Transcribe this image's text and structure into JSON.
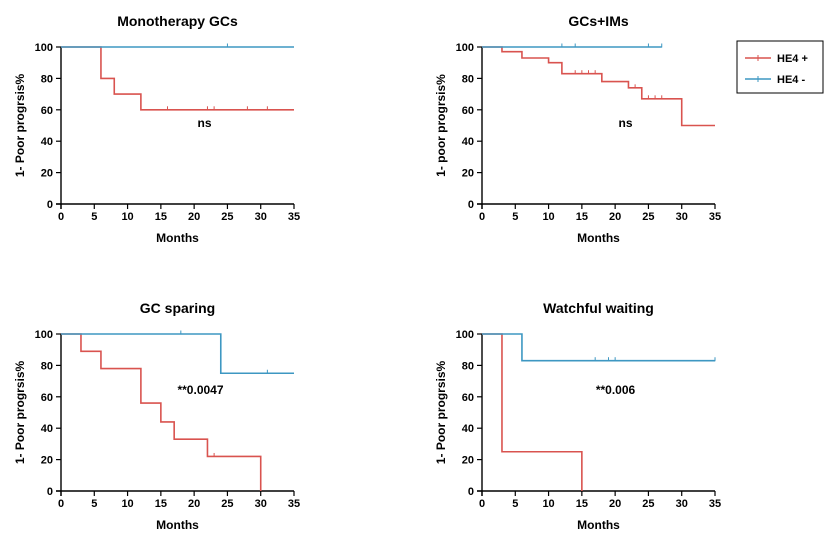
{
  "colors": {
    "HE4+": "#d9534f",
    "HE4-": "#3d97c2"
  },
  "legend": [
    {
      "label": "HE4 +",
      "color": "#d9534f"
    },
    {
      "label": "HE4 -",
      "color": "#3d97c2"
    }
  ],
  "chart_data": [
    {
      "type": "line",
      "subtype": "kaplan-meier step",
      "title": "Monotherapy GCs",
      "xlabel": "Months",
      "ylabel": "1- Poor progrsis%",
      "xlim": [
        0,
        35
      ],
      "ylim": [
        0,
        100
      ],
      "xticks": [
        0,
        5,
        10,
        15,
        20,
        25,
        30,
        35
      ],
      "yticks": [
        0,
        20,
        40,
        60,
        80,
        100
      ],
      "annotation": "ns",
      "series": [
        {
          "name": "HE4 +",
          "color": "#d9534f",
          "steps": [
            [
              0,
              100
            ],
            [
              6,
              80
            ],
            [
              8,
              70
            ],
            [
              12,
              60
            ],
            [
              35,
              60
            ]
          ],
          "censored": [
            16,
            22,
            23,
            28,
            31
          ]
        },
        {
          "name": "HE4 -",
          "color": "#3d97c2",
          "steps": [
            [
              0,
              100
            ],
            [
              35,
              100
            ]
          ],
          "censored": [
            25
          ]
        }
      ]
    },
    {
      "type": "line",
      "subtype": "kaplan-meier step",
      "title": "GCs+IMs",
      "xlabel": "Months",
      "ylabel": "1- poor progrsis%",
      "xlim": [
        0,
        35
      ],
      "ylim": [
        0,
        100
      ],
      "xticks": [
        0,
        5,
        10,
        15,
        20,
        25,
        30,
        35
      ],
      "yticks": [
        0,
        20,
        40,
        60,
        80,
        100
      ],
      "annotation": "ns",
      "series": [
        {
          "name": "HE4 +",
          "color": "#d9534f",
          "steps": [
            [
              0,
              100
            ],
            [
              3,
              97
            ],
            [
              6,
              93
            ],
            [
              10,
              90
            ],
            [
              12,
              83
            ],
            [
              18,
              78
            ],
            [
              22,
              74
            ],
            [
              24,
              67
            ],
            [
              30,
              50
            ],
            [
              35,
              50
            ]
          ],
          "censored": [
            14,
            15,
            16,
            17,
            23,
            25,
            26,
            27
          ]
        },
        {
          "name": "HE4 -",
          "color": "#3d97c2",
          "steps": [
            [
              0,
              100
            ],
            [
              27,
              100
            ]
          ],
          "censored": [
            12,
            14,
            25,
            27
          ]
        }
      ]
    },
    {
      "type": "line",
      "subtype": "kaplan-meier step",
      "title": "GC sparing",
      "xlabel": "Months",
      "ylabel": "1- Poor progrsis%",
      "xlim": [
        0,
        35
      ],
      "ylim": [
        0,
        100
      ],
      "xticks": [
        0,
        5,
        10,
        15,
        20,
        25,
        30,
        35
      ],
      "yticks": [
        0,
        20,
        40,
        60,
        80,
        100
      ],
      "annotation": "**0.0047",
      "series": [
        {
          "name": "HE4 +",
          "color": "#d9534f",
          "steps": [
            [
              0,
              100
            ],
            [
              3,
              89
            ],
            [
              6,
              78
            ],
            [
              12,
              56
            ],
            [
              15,
              44
            ],
            [
              17,
              33
            ],
            [
              22,
              22
            ],
            [
              30,
              0
            ]
          ],
          "censored": [
            23
          ]
        },
        {
          "name": "HE4 -",
          "color": "#3d97c2",
          "steps": [
            [
              0,
              100
            ],
            [
              24,
              75
            ],
            [
              35,
              75
            ]
          ],
          "censored": [
            18,
            31
          ]
        }
      ]
    },
    {
      "type": "line",
      "subtype": "kaplan-meier step",
      "title": "Watchful waiting",
      "xlabel": "Months",
      "ylabel": "1- Poor progrsis%",
      "xlim": [
        0,
        35
      ],
      "ylim": [
        0,
        100
      ],
      "xticks": [
        0,
        5,
        10,
        15,
        20,
        25,
        30,
        35
      ],
      "yticks": [
        0,
        20,
        40,
        60,
        80,
        100
      ],
      "annotation": "**0.006",
      "series": [
        {
          "name": "HE4 +",
          "color": "#d9534f",
          "steps": [
            [
              0,
              100
            ],
            [
              3,
              25
            ],
            [
              15,
              0
            ]
          ],
          "censored": []
        },
        {
          "name": "HE4 -",
          "color": "#3d97c2",
          "steps": [
            [
              0,
              100
            ],
            [
              6,
              83
            ],
            [
              35,
              83
            ]
          ],
          "censored": [
            17,
            19,
            20,
            35
          ]
        }
      ]
    }
  ]
}
